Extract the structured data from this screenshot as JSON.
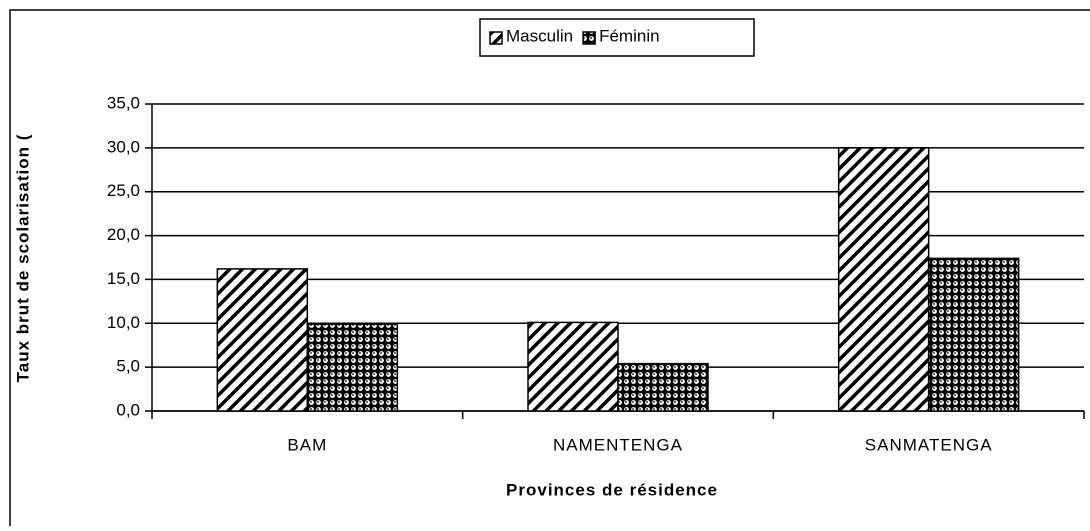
{
  "chart_data": {
    "type": "bar",
    "x_label": "Provinces de résidence",
    "y_label": "Taux brut de scolarisation (",
    "categories": [
      "BAM",
      "NAMENTENGA",
      "SANMATENGA"
    ],
    "series": [
      {
        "name": "Masculin",
        "color": "#000000",
        "values": [
          16.2,
          10.1,
          30.0
        ]
      },
      {
        "name": "Féminin",
        "color": "#000000",
        "values": [
          9.9,
          5.4,
          17.4
        ]
      }
    ],
    "ylim": [
      0,
      35
    ],
    "yticks": [
      {
        "value": 0,
        "label": "0,0"
      },
      {
        "value": 5,
        "label": "5,0"
      },
      {
        "value": 10,
        "label": "10,0"
      },
      {
        "value": 15,
        "label": "15,0"
      },
      {
        "value": 20,
        "label": "20,0"
      },
      {
        "value": 25,
        "label": "25,0"
      },
      {
        "value": 30,
        "label": "30,0"
      },
      {
        "value": 35,
        "label": "35,0"
      }
    ],
    "grid": true,
    "legend": "top"
  }
}
